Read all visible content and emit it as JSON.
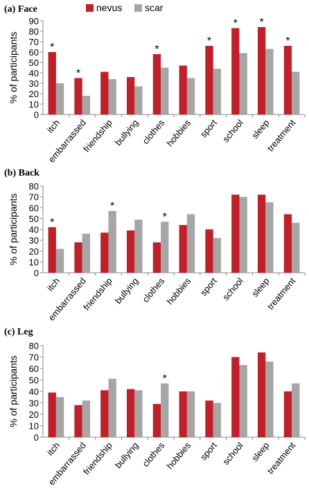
{
  "chart_data": [
    {
      "type": "bar",
      "title": "(a) Face",
      "ylabel": "% of participants",
      "categories": [
        "itch",
        "embarrassed",
        "friendship",
        "bullying",
        "clothes",
        "hobbies",
        "sport",
        "school",
        "sleep",
        "treatment"
      ],
      "series": [
        {
          "name": "nevus",
          "color": "#c0202a",
          "values": [
            60,
            35,
            41,
            36,
            58,
            47,
            66,
            83,
            84,
            66
          ],
          "annotations": [
            "*",
            "*",
            null,
            null,
            "*",
            null,
            "*",
            "*",
            "*",
            "*"
          ]
        },
        {
          "name": "scar",
          "color": "#a6a6a6",
          "values": [
            30,
            18,
            34,
            27,
            45,
            35,
            44,
            59,
            63,
            41
          ],
          "annotations": [
            null,
            null,
            null,
            null,
            null,
            null,
            null,
            null,
            null,
            null
          ]
        }
      ],
      "ylim": [
        0,
        90
      ],
      "yticks": [
        0,
        10,
        20,
        30,
        40,
        50,
        60,
        70,
        80,
        90
      ],
      "legend": "top"
    },
    {
      "type": "bar",
      "title": "(b) Back",
      "ylabel": "% of participants",
      "categories": [
        "itch",
        "embarrassed",
        "friendship",
        "bullying",
        "clothes",
        "hobbies",
        "sport",
        "school",
        "sleep",
        "treatment"
      ],
      "series": [
        {
          "color": "#c0202a",
          "values": [
            42,
            28,
            37,
            39,
            28,
            44,
            40,
            72,
            72,
            54
          ],
          "annotations": [
            "*",
            null,
            null,
            null,
            null,
            null,
            null,
            null,
            null,
            null
          ]
        },
        {
          "color": "#a6a6a6",
          "values": [
            22,
            36,
            57,
            49,
            47,
            54,
            32,
            70,
            65,
            46
          ],
          "annotations": [
            null,
            null,
            "*",
            null,
            "*",
            null,
            null,
            null,
            null,
            null
          ]
        }
      ],
      "ylim": [
        0,
        80
      ],
      "yticks": [
        0,
        10,
        20,
        30,
        40,
        50,
        60,
        70,
        80
      ]
    },
    {
      "type": "bar",
      "title": "(c) Leg",
      "ylabel": "% of participants",
      "categories": [
        "itch",
        "embarrassed",
        "friendship",
        "bullying",
        "clothes",
        "hobbies",
        "sport",
        "school",
        "sleep",
        "treatment"
      ],
      "series": [
        {
          "color": "#c0202a",
          "values": [
            39,
            28,
            41,
            42,
            29,
            40,
            32,
            70,
            74,
            40
          ],
          "annotations": [
            null,
            null,
            null,
            null,
            null,
            null,
            null,
            null,
            null,
            null
          ]
        },
        {
          "color": "#a6a6a6",
          "values": [
            35,
            32,
            51,
            41,
            47,
            40,
            30,
            63,
            66,
            47
          ],
          "annotations": [
            null,
            null,
            null,
            null,
            "*",
            null,
            null,
            null,
            null,
            null
          ]
        }
      ],
      "ylim": [
        0,
        80
      ],
      "yticks": [
        0,
        10,
        20,
        30,
        40,
        50,
        60,
        70,
        80
      ]
    }
  ]
}
